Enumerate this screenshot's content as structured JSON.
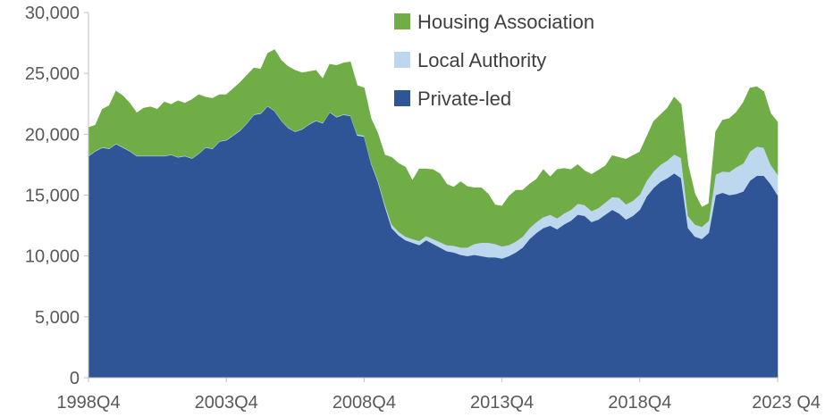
{
  "chart_data": {
    "type": "area",
    "stacked": true,
    "title": "",
    "xlabel": "",
    "ylabel": "",
    "ylim": [
      0,
      30000
    ],
    "yticks": [
      0,
      5000,
      10000,
      15000,
      20000,
      25000,
      30000
    ],
    "ytick_labels": [
      "0",
      "5,000",
      "10,000",
      "15,000",
      "20,000",
      "25,000",
      "30,000"
    ],
    "xtick_labels": [
      "1998Q4",
      "2003Q4",
      "2008Q4",
      "2013Q4",
      "2018Q4",
      "2023 Q4"
    ],
    "xtick_index": [
      0,
      20,
      40,
      60,
      80,
      100
    ],
    "grid": false,
    "legend_position": "top-right",
    "x_start": "1998Q4",
    "x_end": "2023Q4",
    "series": [
      {
        "name": "Private-led",
        "color": "#2f5597",
        "values": [
          18200,
          18600,
          18900,
          18800,
          19200,
          18900,
          18600,
          18200,
          18200,
          18200,
          18200,
          18200,
          18300,
          18100,
          18200,
          18000,
          18400,
          18900,
          18800,
          19400,
          19500,
          19900,
          20300,
          20900,
          21600,
          21700,
          22300,
          21900,
          21100,
          20500,
          20200,
          20400,
          20800,
          21100,
          20900,
          21800,
          21400,
          21600,
          21500,
          19900,
          19800,
          17600,
          16100,
          14100,
          12300,
          11700,
          11300,
          11100,
          10900,
          11300,
          11000,
          10700,
          10400,
          10300,
          10100,
          10000,
          10100,
          10000,
          9900,
          9900,
          9800,
          10000,
          10300,
          10700,
          11400,
          11900,
          12300,
          12500,
          12200,
          12600,
          12900,
          13400,
          13300,
          12800,
          13000,
          13400,
          13800,
          13500,
          13000,
          13300,
          13800,
          14900,
          15600,
          16100,
          16400,
          16800,
          16400,
          12300,
          11600,
          11400,
          11900,
          15000,
          15200,
          15000,
          15100,
          15300,
          16200,
          16600,
          16600,
          15900,
          15000
        ]
      },
      {
        "name": "Local Authority",
        "color": "#bdd7ee",
        "values": [
          50,
          50,
          50,
          50,
          50,
          50,
          50,
          50,
          50,
          50,
          50,
          50,
          50,
          50,
          50,
          50,
          50,
          50,
          50,
          50,
          50,
          50,
          50,
          50,
          50,
          50,
          50,
          50,
          50,
          50,
          50,
          50,
          50,
          50,
          50,
          50,
          50,
          50,
          50,
          100,
          100,
          100,
          150,
          200,
          300,
          300,
          300,
          300,
          350,
          350,
          400,
          450,
          500,
          550,
          600,
          700,
          900,
          1100,
          1200,
          1100,
          1000,
          900,
          900,
          900,
          900,
          900,
          900,
          900,
          900,
          900,
          900,
          900,
          900,
          900,
          950,
          1000,
          1050,
          1300,
          1250,
          1250,
          1250,
          1300,
          1350,
          1400,
          1450,
          1550,
          1650,
          1000,
          1000,
          1000,
          1000,
          1700,
          1750,
          1900,
          2200,
          2300,
          2400,
          2400,
          2300,
          1600,
          1700
        ]
      },
      {
        "name": "Housing Association",
        "color": "#70ad47",
        "values": [
          2300,
          2100,
          3100,
          3500,
          4300,
          4200,
          3900,
          3500,
          3900,
          4000,
          3800,
          4400,
          4100,
          4600,
          4300,
          4800,
          4800,
          4100,
          4100,
          3800,
          3700,
          3800,
          3900,
          3900,
          3800,
          3600,
          4300,
          5000,
          4900,
          5000,
          5000,
          4600,
          4300,
          4100,
          3600,
          3900,
          4200,
          4200,
          4400,
          4000,
          3900,
          3600,
          3800,
          4000,
          5500,
          5600,
          5700,
          4800,
          5900,
          5500,
          5700,
          5600,
          5000,
          4800,
          5400,
          5000,
          4600,
          4500,
          4000,
          3200,
          3300,
          4000,
          4200,
          3800,
          3600,
          3500,
          3900,
          3100,
          4000,
          3700,
          3300,
          3200,
          2800,
          3000,
          3100,
          3000,
          3400,
          3300,
          3700,
          3700,
          3500,
          3600,
          4100,
          4100,
          4300,
          4700,
          4400,
          4200,
          2500,
          1600,
          1400,
          3500,
          4200,
          4400,
          4500,
          5000,
          5200,
          4900,
          4600,
          4200,
          4300
        ]
      }
    ]
  }
}
